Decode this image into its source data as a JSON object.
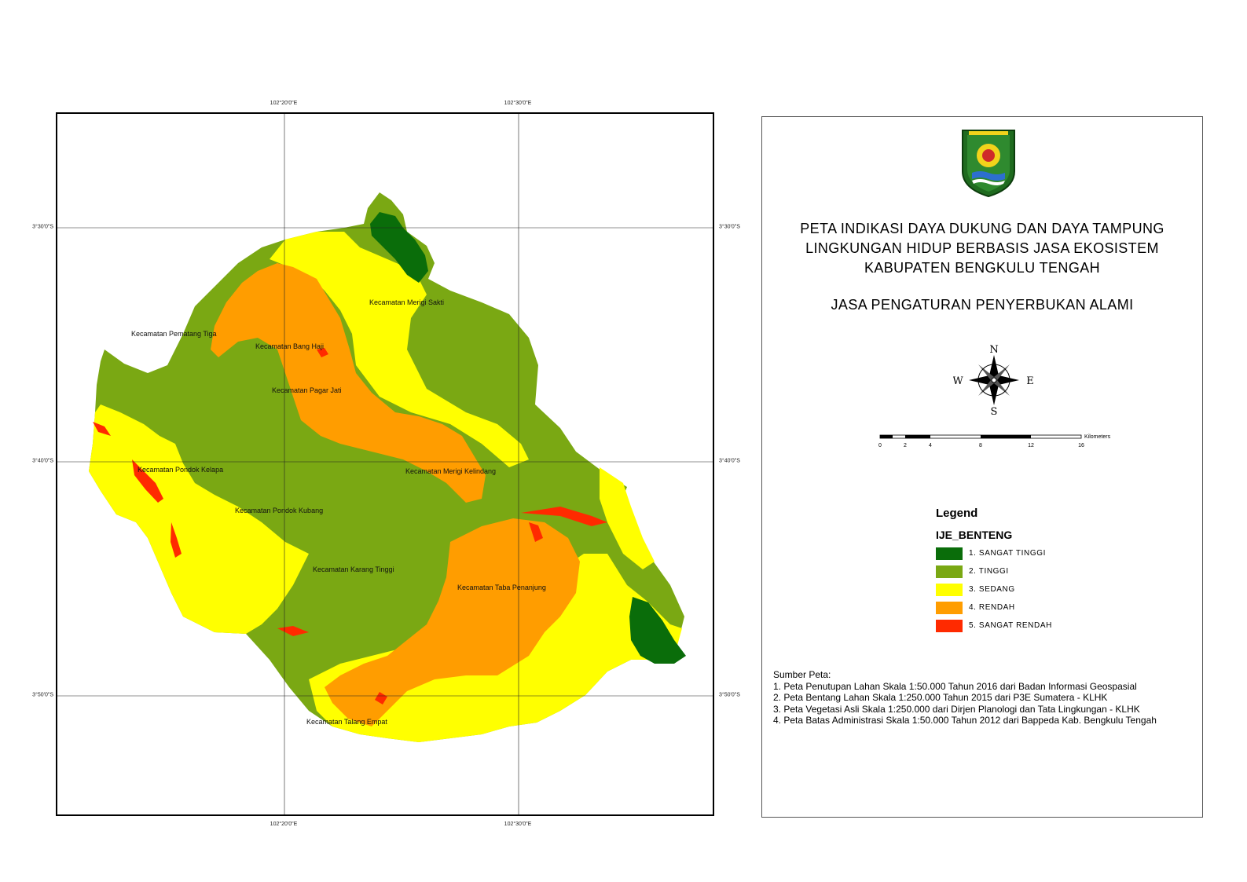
{
  "map": {
    "coord_top": [
      "102°20'0\"E",
      "102°30'0\"E"
    ],
    "coord_bottom": [
      "102°20'0\"E",
      "102°30'0\"E"
    ],
    "coord_left": [
      "3°30'0\"S",
      "3°40'0\"S",
      "3°50'0\"S"
    ],
    "coord_right": [
      "3°30'0\"S",
      "3°40'0\"S",
      "3°50'0\"S"
    ],
    "districts": [
      "Kecamatan Merigi Sakti",
      "Kecamatan Pematang Tiga",
      "Kecamatan Bang Haji",
      "Kecamatan Pagar Jati",
      "Kecamatan Pondok Kelapa",
      "Kecamatan Merigi Kelindang",
      "Kecamatan Pondok Kubang",
      "Kecamatan Karang Tinggi",
      "Kecamatan Taba Penanjung",
      "Kecamatan Talang Empat"
    ]
  },
  "title": {
    "line1": "PETA INDIKASI DAYA DUKUNG DAN DAYA TAMPUNG",
    "line2": "LINGKUNGAN HIDUP BERBASIS JASA EKOSISTEM",
    "line3": "KABUPATEN BENGKULU TENGAH",
    "subtitle": "JASA PENGATURAN PENYERBUKAN ALAMI"
  },
  "compass": {
    "n": "N",
    "s": "S",
    "e": "E",
    "w": "W"
  },
  "scale": {
    "unit": "Kilometers",
    "ticks": [
      "0",
      "2",
      "4",
      "8",
      "12",
      "16"
    ]
  },
  "legend": {
    "heading": "Legend",
    "layer": "IJE_BENTENG",
    "items": [
      {
        "label": "1. SANGAT TINGGI",
        "color": "#0a6d0a"
      },
      {
        "label": "2. TINGGI",
        "color": "#7aa813"
      },
      {
        "label": "3. SEDANG",
        "color": "#ffff00"
      },
      {
        "label": "4. RENDAH",
        "color": "#ff9d00"
      },
      {
        "label": "5. SANGAT RENDAH",
        "color": "#ff2a00"
      }
    ]
  },
  "sources": {
    "heading": "Sumber Peta:",
    "items": [
      "1. Peta Penutupan Lahan Skala 1:50.000 Tahun 2016 dari Badan Informasi Geospasial",
      "2. Peta Bentang Lahan Skala 1:250.000 Tahun 2015 dari  P3E Sumatera - KLHK",
      "3. Peta Vegetasi Asli Skala 1:250.000 dari Dirjen Planologi dan Tata Lingkungan - KLHK",
      "4. Peta Batas Administrasi Skala 1:50.000 Tahun 2012 dari Bappeda Kab. Bengkulu Tengah"
    ]
  }
}
